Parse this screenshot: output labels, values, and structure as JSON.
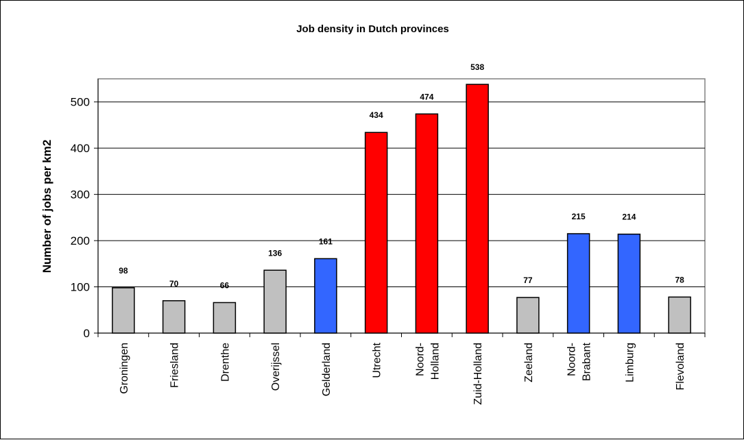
{
  "chart_data": {
    "type": "bar",
    "title": "Job density in Dutch provinces",
    "ylabel": "Number of jobs per km2",
    "xlabel": "",
    "ylim": [
      0,
      550
    ],
    "yticks": [
      0,
      100,
      200,
      300,
      400,
      500
    ],
    "grid": true,
    "legend": "none",
    "categories": [
      [
        "Groningen"
      ],
      [
        "Friesland"
      ],
      [
        "Drenthe"
      ],
      [
        "Overijssel"
      ],
      [
        "Gelderland"
      ],
      [
        "Utrecht"
      ],
      [
        "Noord-",
        "Holland"
      ],
      [
        "Zuid-Holland"
      ],
      [
        "Zeeland"
      ],
      [
        "Noord-",
        "Brabant"
      ],
      [
        "Limburg"
      ],
      [
        "Flevoland"
      ]
    ],
    "values": [
      98,
      70,
      66,
      136,
      161,
      434,
      474,
      538,
      77,
      215,
      214,
      78
    ],
    "bar_colors": [
      "#c0c0c0",
      "#c0c0c0",
      "#c0c0c0",
      "#c0c0c0",
      "#3366ff",
      "#ff0000",
      "#ff0000",
      "#ff0000",
      "#c0c0c0",
      "#3366ff",
      "#3366ff",
      "#c0c0c0"
    ],
    "plot_background": "#c0c0c0"
  }
}
